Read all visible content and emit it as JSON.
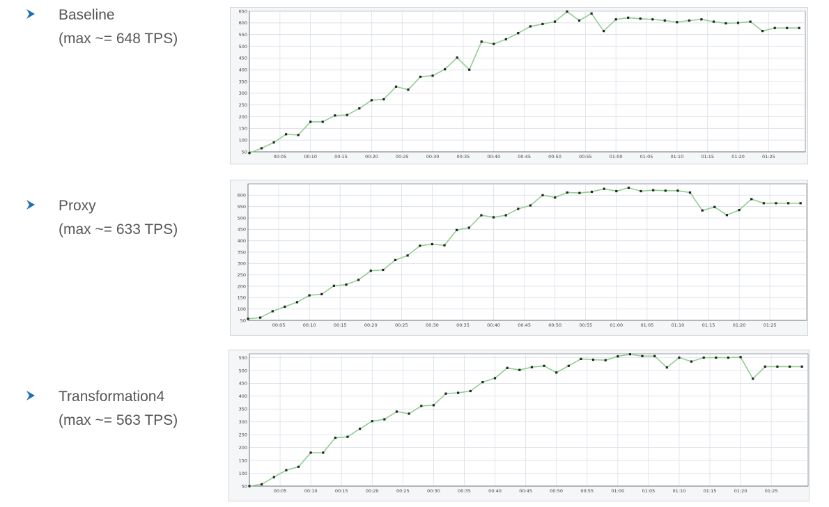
{
  "bullets": [
    {
      "name": "Baseline",
      "max_text": "(max ~= 648 TPS)"
    },
    {
      "name": "Proxy",
      "max_text": "(max ~= 633 TPS)"
    },
    {
      "name": "Transformation4",
      "max_text": "(max ~= 563 TPS)"
    }
  ],
  "colors": {
    "line": "#8fcf8f",
    "marker": "#222222",
    "grid": "#d9dee6",
    "bullet": "#1f6fb2",
    "text": "#555555"
  },
  "chart_data": [
    {
      "type": "line",
      "title": "",
      "xlabel": "",
      "ylabel": "",
      "ylim": [
        50,
        650
      ],
      "yticks": [
        50,
        100,
        150,
        200,
        250,
        300,
        350,
        400,
        450,
        500,
        550,
        600,
        650
      ],
      "xlim": [
        0,
        91
      ],
      "xticks": [
        5,
        10,
        15,
        20,
        25,
        30,
        35,
        40,
        45,
        50,
        55,
        60,
        65,
        70,
        75,
        80,
        85
      ],
      "xtick_labels": [
        "00:05",
        "00:10",
        "00:15",
        "00:20",
        "00:25",
        "00:30",
        "00:35",
        "00:40",
        "00:45",
        "00:50",
        "00:55",
        "01:00",
        "01:05",
        "01:10",
        "01:15",
        "01:20",
        "01:25"
      ],
      "grid": true,
      "series": [
        {
          "x": [
            0,
            2,
            4,
            6,
            8,
            10,
            12,
            14,
            16,
            18,
            20,
            22,
            24,
            26,
            28,
            30,
            32,
            34,
            36,
            38,
            40,
            42,
            44,
            46,
            48,
            50,
            52,
            54,
            56,
            58,
            60,
            62,
            64,
            66,
            68,
            70,
            72,
            74,
            76,
            78,
            80,
            82,
            84,
            86,
            88,
            90
          ],
          "y": [
            45,
            65,
            90,
            125,
            122,
            178,
            178,
            205,
            207,
            235,
            270,
            274,
            328,
            315,
            370,
            375,
            402,
            452,
            400,
            520,
            510,
            530,
            556,
            585,
            595,
            605,
            648,
            610,
            640,
            565,
            615,
            622,
            618,
            615,
            610,
            603,
            610,
            615,
            605,
            598,
            600,
            605,
            565,
            578,
            578,
            578
          ]
        }
      ]
    },
    {
      "type": "line",
      "title": "",
      "xlabel": "",
      "ylabel": "",
      "ylim": [
        50,
        650
      ],
      "yticks": [
        50,
        100,
        150,
        200,
        250,
        300,
        350,
        400,
        450,
        500,
        550,
        600
      ],
      "xlim": [
        0,
        91
      ],
      "xticks": [
        5,
        10,
        15,
        20,
        25,
        30,
        35,
        40,
        45,
        50,
        55,
        60,
        65,
        70,
        75,
        80,
        85
      ],
      "xtick_labels": [
        "00:05",
        "00:10",
        "00:15",
        "00:20",
        "00:25",
        "00:30",
        "00:35",
        "00:40",
        "00:45",
        "00:50",
        "00:55",
        "01:00",
        "01:05",
        "01:10",
        "01:15",
        "01:20",
        "01:25"
      ],
      "grid": true,
      "series": [
        {
          "x": [
            0,
            2,
            4,
            6,
            8,
            10,
            12,
            14,
            16,
            18,
            20,
            22,
            24,
            26,
            28,
            30,
            32,
            34,
            36,
            38,
            40,
            42,
            44,
            46,
            48,
            50,
            52,
            54,
            56,
            58,
            60,
            62,
            64,
            66,
            68,
            70,
            72,
            74,
            76,
            78,
            80,
            82,
            84,
            86,
            88,
            90
          ],
          "y": [
            57,
            62,
            90,
            110,
            130,
            160,
            165,
            202,
            207,
            228,
            268,
            272,
            315,
            335,
            378,
            385,
            380,
            447,
            457,
            512,
            503,
            512,
            540,
            555,
            600,
            590,
            612,
            610,
            615,
            628,
            618,
            633,
            618,
            622,
            620,
            620,
            612,
            533,
            548,
            513,
            535,
            583,
            565,
            565,
            565,
            565
          ]
        }
      ]
    },
    {
      "type": "line",
      "title": "",
      "xlabel": "",
      "ylabel": "",
      "ylim": [
        50,
        565
      ],
      "yticks": [
        50,
        100,
        150,
        200,
        250,
        300,
        350,
        400,
        450,
        500,
        550
      ],
      "xlim": [
        0,
        91
      ],
      "xticks": [
        5,
        10,
        15,
        20,
        25,
        30,
        35,
        40,
        45,
        50,
        55,
        60,
        65,
        70,
        75,
        80,
        85
      ],
      "xtick_labels": [
        "00:05",
        "00:10",
        "00:15",
        "00:20",
        "00:25",
        "00:30",
        "00:35",
        "00:40",
        "00:45",
        "00:50",
        "00:55",
        "01:00",
        "01:05",
        "01:10",
        "01:15",
        "01:20",
        "01:25"
      ],
      "grid": true,
      "series": [
        {
          "x": [
            0,
            2,
            4,
            6,
            8,
            10,
            12,
            14,
            16,
            18,
            20,
            22,
            24,
            26,
            28,
            30,
            32,
            34,
            36,
            38,
            40,
            42,
            44,
            46,
            48,
            50,
            52,
            54,
            56,
            58,
            60,
            62,
            64,
            66,
            68,
            70,
            72,
            74,
            76,
            78,
            80,
            82,
            84,
            86,
            88,
            90
          ],
          "y": [
            50,
            57,
            85,
            112,
            125,
            180,
            180,
            238,
            242,
            273,
            303,
            310,
            340,
            332,
            362,
            365,
            410,
            413,
            420,
            455,
            470,
            510,
            502,
            513,
            518,
            492,
            518,
            545,
            542,
            540,
            555,
            563,
            556,
            556,
            512,
            550,
            535,
            550,
            550,
            550,
            552,
            468,
            515,
            515,
            515,
            515
          ]
        }
      ]
    }
  ]
}
